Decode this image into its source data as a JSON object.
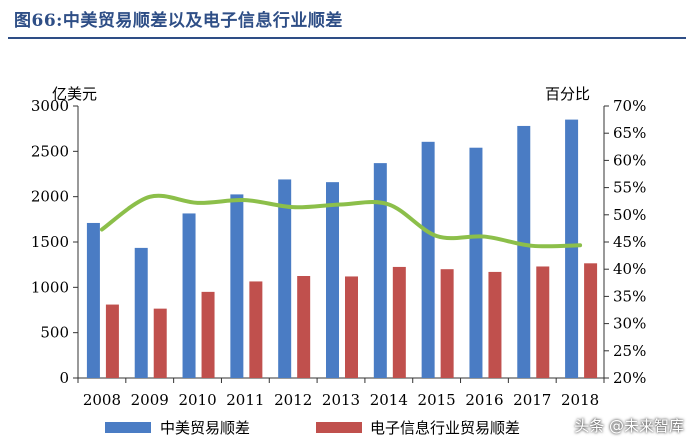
{
  "figure_title": "图66:中美贸易顺差以及电子信息行业顺差",
  "watermark": "头条 @未来智库",
  "colors": {
    "title": "#2e4e86",
    "bar1": "#4a7cc4",
    "bar2": "#c0504d",
    "line": "#8cbf4a",
    "axis": "#333333"
  },
  "chart_data": {
    "type": "bar",
    "categories": [
      "2008",
      "2009",
      "2010",
      "2011",
      "2012",
      "2013",
      "2014",
      "2015",
      "2016",
      "2017",
      "2018"
    ],
    "left_axis": {
      "unit_label": "亿美元",
      "ylim": [
        0,
        3000
      ],
      "ticks": [
        "0",
        "500",
        "1000",
        "1500",
        "2000",
        "2500",
        "3000"
      ]
    },
    "right_axis": {
      "unit_label": "百分比",
      "ylim": [
        20,
        70
      ],
      "ticks": [
        "20%",
        "25%",
        "30%",
        "35%",
        "40%",
        "45%",
        "50%",
        "55%",
        "60%",
        "65%",
        "70%"
      ]
    },
    "series": [
      {
        "name": "中美贸易顺差",
        "type": "bar",
        "axis": "left",
        "values": [
          1710,
          1435,
          1815,
          2025,
          2190,
          2160,
          2370,
          2605,
          2540,
          2780,
          2850
        ]
      },
      {
        "name": "电子信息行业贸易顺差",
        "type": "bar",
        "axis": "left",
        "values": [
          810,
          765,
          950,
          1065,
          1125,
          1120,
          1225,
          1200,
          1170,
          1230,
          1265
        ]
      },
      {
        "type": "line",
        "axis": "right",
        "values": [
          47.3,
          53.3,
          52.2,
          52.7,
          51.4,
          51.9,
          51.9,
          46.1,
          46.0,
          44.3,
          44.4
        ]
      }
    ],
    "grid": false,
    "legend_position": "bottom"
  }
}
